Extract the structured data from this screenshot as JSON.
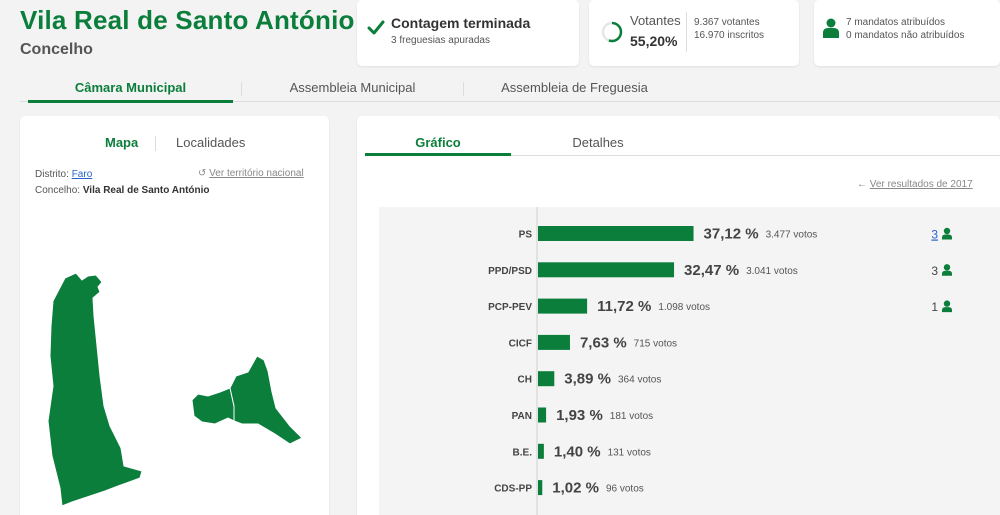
{
  "header": {
    "title": "Vila Real de Santo António",
    "subtitle": "Concelho"
  },
  "status_cards": {
    "count": {
      "title": "Contagem terminada",
      "subtitle": "3 freguesias apuradas"
    },
    "voters": {
      "label": "Votantes",
      "percent": "55,20%",
      "percent_value": 55.2,
      "voters": "9.367 votantes",
      "registered": "16.970 inscritos"
    },
    "mandates": {
      "assigned": "7 mandatos atribuídos",
      "unassigned": "0 mandatos não atribuídos"
    }
  },
  "main_tabs": [
    {
      "label": "Câmara Municipal",
      "active": true
    },
    {
      "label": "Assembleia Municipal",
      "active": false
    },
    {
      "label": "Assembleia de Freguesia",
      "active": false
    }
  ],
  "left_panel": {
    "tabs": [
      {
        "label": "Mapa",
        "active": true
      },
      {
        "label": "Localidades",
        "active": false
      }
    ],
    "district_label": "Distrito:",
    "district_value": "Faro",
    "national_link": "Ver território nacional",
    "council_label": "Concelho:",
    "council_value": "Vila Real de Santo António"
  },
  "right_panel": {
    "tabs": [
      {
        "label": "Gráfico",
        "active": true
      },
      {
        "label": "Detalhes",
        "active": false
      }
    ],
    "previous_results_link": "Ver resultados de 2017"
  },
  "colors": {
    "brand_green": "#0b7e3b",
    "link_blue": "#2862c8"
  },
  "chart_data": {
    "type": "bar",
    "orientation": "horizontal",
    "categories": [
      "PS",
      "PPD/PSD",
      "PCP-PEV",
      "CICF",
      "CH",
      "PAN",
      "B.E.",
      "CDS-PP"
    ],
    "values": [
      37.12,
      32.47,
      11.72,
      7.63,
      3.89,
      1.93,
      1.4,
      1.02
    ],
    "value_labels": [
      "37,12 %",
      "32,47 %",
      "11,72 %",
      "7,63 %",
      "3,89 %",
      "1,93 %",
      "1,40 %",
      "1,02 %"
    ],
    "votes": [
      "3.477 votos",
      "3.041 votos",
      "1.098 votos",
      "715 votos",
      "364 votos",
      "181 votos",
      "131 votos",
      "96 votos"
    ],
    "mandates": [
      "3",
      "3",
      "1",
      "",
      "",
      "",
      "",
      ""
    ],
    "color": "#0b7e3b"
  }
}
